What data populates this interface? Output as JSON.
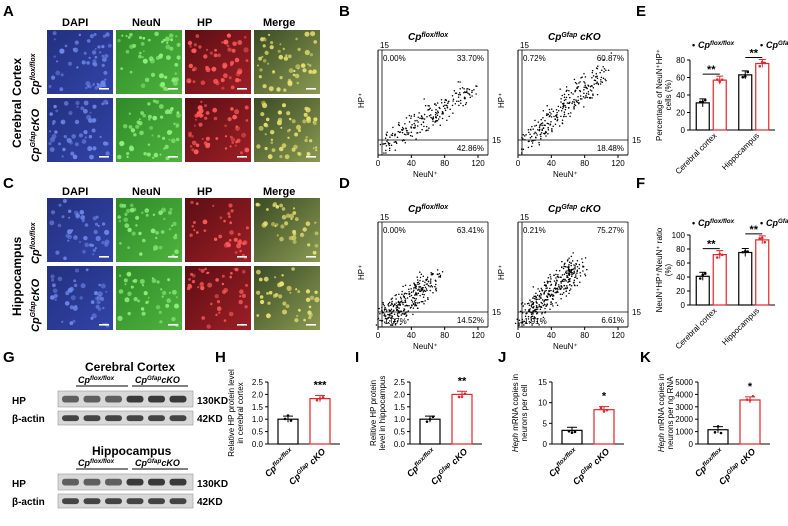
{
  "colors": {
    "control": "#000000",
    "cko": "#e0262a",
    "dapi": "#2b3c9c",
    "neun": "#3fa535",
    "hp": "#b8202a",
    "merge_bg": "#18210f"
  },
  "panels": {
    "A": {
      "letter": "A",
      "cols": [
        "DAPI",
        "NeuN",
        "HP",
        "Merge"
      ],
      "region": "Cerebral Cortex"
    },
    "C": {
      "letter": "C",
      "cols": [
        "DAPI",
        "NeuN",
        "HP",
        "Merge"
      ],
      "region": "Hippocampus"
    },
    "B": {
      "letter": "B"
    },
    "D": {
      "letter": "D"
    },
    "E": {
      "letter": "E"
    },
    "F": {
      "letter": "F"
    },
    "G": {
      "letter": "G",
      "title1": "Cerebral Cortex",
      "title2": "Hippocampus",
      "hp": "HP",
      "actin": "β-actin",
      "kd130": "130KD",
      "kd42": "42KD"
    },
    "H": {
      "letter": "H"
    },
    "I": {
      "letter": "I"
    },
    "J": {
      "letter": "J"
    },
    "K": {
      "letter": "K"
    }
  },
  "genotypes": {
    "control_base": "Cp",
    "control_sup": "flox/flox",
    "cko_base": "Cp",
    "cko_sup": "Gfap",
    "cko_suffix": "cKO"
  },
  "flow": {
    "gate_value": "15",
    "x_axis_label": "NeuN⁺",
    "y_axis_label": "HP⁺",
    "x_ticks": [
      "0",
      "40",
      "80",
      "120"
    ],
    "B_control": {
      "ul": "0.00%",
      "ur": "33.70%",
      "lr": "42.86%",
      "ll": ""
    },
    "B_cko": {
      "ul": "0.72%",
      "ur": "60.87%",
      "lr": "18.48%",
      "ll": ""
    },
    "D_control": {
      "ul": "0.00%",
      "ur": "63.41%",
      "lr": "14.52%",
      "ll": "1.07%"
    },
    "D_cko": {
      "ul": "0.21%",
      "ur": "75.27%",
      "lr": "6.61%",
      "ll": "1.91%"
    }
  },
  "chart_data": [
    {
      "panel": "E",
      "type": "bar",
      "ylabel": "Percentage of NeuN⁺HP⁺ cells (%)",
      "categories": [
        "Cerebral cortex",
        "Hippocampus"
      ],
      "ylim": [
        0,
        80
      ],
      "yticks": [
        0,
        20,
        40,
        60,
        80
      ],
      "series": [
        {
          "name": "Cp flox/flox",
          "values": [
            31,
            63
          ]
        },
        {
          "name": "Cp Gfap cKO",
          "values": [
            57,
            76
          ]
        }
      ],
      "significance": [
        "**",
        "**"
      ]
    },
    {
      "panel": "F",
      "type": "bar",
      "ylabel": "NeuN⁺HP⁺/NeuN⁺ ratio (%)",
      "categories": [
        "Cerebral cortex",
        "Hippocampus"
      ],
      "ylim": [
        0,
        100
      ],
      "yticks": [
        0,
        20,
        40,
        60,
        80,
        100
      ],
      "series": [
        {
          "name": "Cp flox/flox",
          "values": [
            41,
            75
          ]
        },
        {
          "name": "Cp Gfap cKO",
          "values": [
            72,
            93
          ]
        }
      ],
      "significance": [
        "**",
        "**"
      ]
    },
    {
      "panel": "H",
      "type": "bar",
      "ylabel": "Relative HP protein level in cerebral cortex",
      "categories": [
        "Cp flox/flox",
        "Cp Gfap cKO"
      ],
      "ylim": [
        0,
        2.5
      ],
      "yticks": [
        "0.0",
        "0.5",
        "1.0",
        "1.5",
        "2.0",
        "2.5"
      ],
      "values": [
        1.0,
        1.83
      ],
      "significance": "***"
    },
    {
      "panel": "I",
      "type": "bar",
      "ylabel": "Relitive HP protein level in hippocampus",
      "categories": [
        "Cp flox/flox",
        "Cp Gfap cKO"
      ],
      "ylim": [
        0,
        2.5
      ],
      "yticks": [
        "0.0",
        "0.5",
        "1.0",
        "1.5",
        "2.0",
        "2.5"
      ],
      "values": [
        1.0,
        2.0
      ],
      "significance": "**"
    },
    {
      "panel": "J",
      "type": "bar",
      "ylabel": "Heph mRNA copies in neurons per cell",
      "categories": [
        "Cp flox/flox",
        "Cp Gfap cKO"
      ],
      "ylim": [
        0,
        15
      ],
      "yticks": [
        0,
        5,
        10,
        15
      ],
      "values": [
        3.3,
        8.3
      ],
      "significance": "*"
    },
    {
      "panel": "K",
      "type": "bar",
      "ylabel": "Heph mRNA copies in neurons per ng RNA",
      "categories": [
        "Cp flox/flox",
        "Cp Gfap cKO"
      ],
      "ylim": [
        0,
        5000
      ],
      "yticks": [
        0,
        1000,
        2000,
        3000,
        4000,
        5000
      ],
      "values": [
        1150,
        3550
      ],
      "significance": "*"
    }
  ]
}
